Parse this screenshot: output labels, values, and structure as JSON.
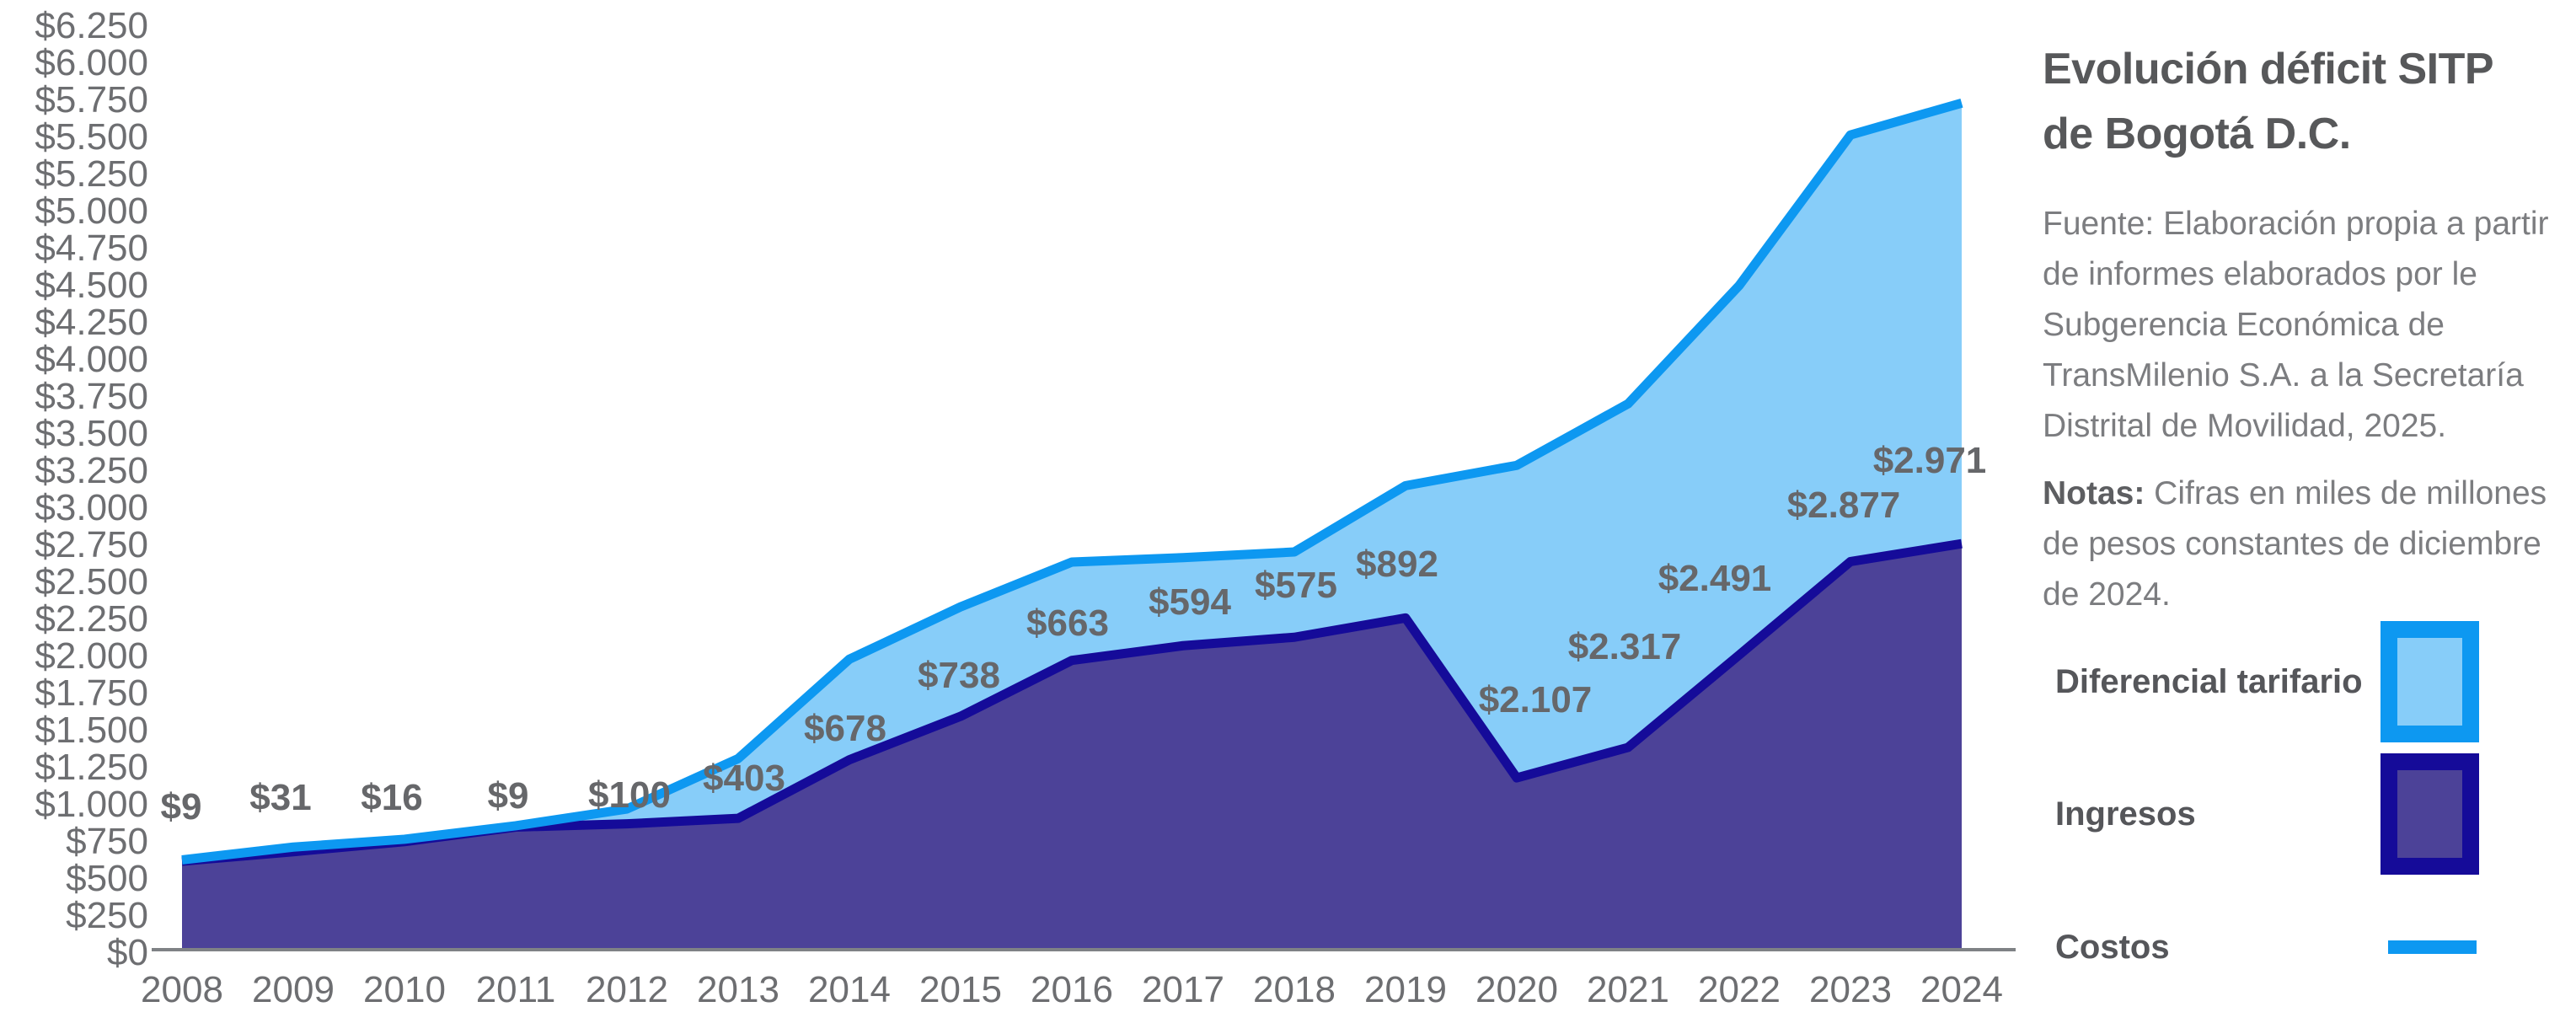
{
  "panel": {
    "title": "Evolución déficit SITP\nde Bogotá D.C.",
    "fuente": "Fuente: Elaboración propia a partir\nde informes elaborados por le\nSubgerencia Económica de\nTransMilenio S.A. a la Secretaría\nDistrital de Movilidad,  2025.",
    "notas_label": "Notas:",
    "notas": " Cifras en miles de millones\nde pesos constantes de diciembre\nde 2024."
  },
  "legend": {
    "items": [
      {
        "label": "Diferencial tarifario",
        "type": "square",
        "border": "#0d98f1",
        "fill": "#87cdf9"
      },
      {
        "label": "Ingresos",
        "type": "square",
        "border": "#150b99",
        "fill": "#4c4298"
      },
      {
        "label": "Costos",
        "type": "line",
        "color": "#0d98f1"
      }
    ]
  },
  "chart_data": {
    "type": "area",
    "title": "Evolución déficit SITP de Bogotá D.C.",
    "categories": [
      "2008",
      "2009",
      "2010",
      "2011",
      "2012",
      "2013",
      "2014",
      "2015",
      "2016",
      "2017",
      "2018",
      "2019",
      "2020",
      "2021",
      "2022",
      "2023",
      "2024"
    ],
    "series": [
      {
        "name": "Costos",
        "type": "line",
        "color": "#0d98f1",
        "values": [
          617,
          703,
          756,
          847,
          960,
          1300,
          1970,
          2323,
          2625,
          2655,
          2693,
          3140,
          3277,
          3692,
          4490,
          5505,
          5720
        ]
      },
      {
        "name": "Ingresos",
        "type": "area",
        "fill": "#4c4298",
        "stroke": "#150b99",
        "values": [
          608,
          672,
          740,
          838,
          860,
          897,
          1292,
          1585,
          1962,
          2061,
          2118,
          2248,
          1170,
          1375,
          1999,
          2628,
          2749
        ]
      },
      {
        "name": "Diferencial tarifario",
        "type": "area-gap",
        "fill": "#87cdf9",
        "values": [
          9,
          31,
          16,
          9,
          100,
          403,
          678,
          738,
          663,
          594,
          575,
          892,
          2107,
          2317,
          2491,
          2877,
          2971
        ],
        "labels": [
          "$9",
          "$31",
          "$16",
          "$9",
          "$100",
          "$403",
          "$678",
          "$738",
          "$663",
          "$594",
          "$575",
          "$892",
          "$2.107",
          "$2.317",
          "$2.491",
          "$2.877",
          "$2.971"
        ]
      }
    ],
    "ylim": [
      0,
      6250
    ],
    "ytick_step": 250,
    "yticks": [
      0,
      250,
      500,
      750,
      1000,
      1250,
      1500,
      1750,
      2000,
      2250,
      2500,
      2750,
      3000,
      3250,
      3500,
      3750,
      4000,
      4250,
      4500,
      4750,
      5000,
      5250,
      5500,
      5750,
      6000,
      6250
    ],
    "ytick_labels": [
      "$0",
      "$250",
      "$500",
      "$750",
      "$1.000",
      "$1.250",
      "$1.500",
      "$1.750",
      "$2.000",
      "$2.250",
      "$2.500",
      "$2.750",
      "$3.000",
      "$3.250",
      "$3.500",
      "$3.750",
      "$4.000",
      "$4.250",
      "$4.500",
      "$4.750",
      "$5.000",
      "$5.250",
      "$5.500",
      "$5.750",
      "$6.000",
      "$6.250"
    ],
    "grid": false,
    "legend_position": "right",
    "axis_text_color": "#6d6e71",
    "data_label_color": "#66676a",
    "axis_line_color": "#7f8285"
  }
}
